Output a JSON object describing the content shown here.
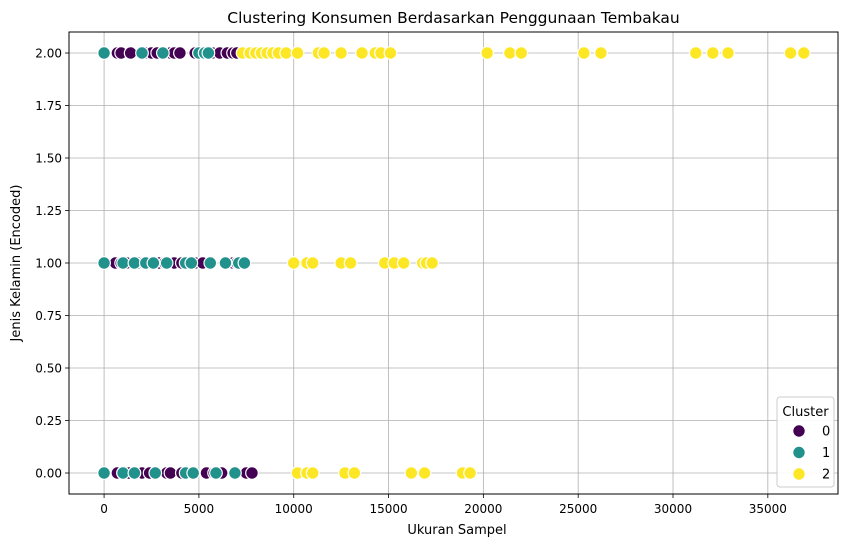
{
  "chart_data": {
    "type": "scatter",
    "title": "Clustering Konsumen Berdasarkan Penggunaan Tembakau",
    "xlabel": "Ukuran Sampel",
    "ylabel": "Jenis Kelamin (Encoded)",
    "xlim": [
      -1850,
      38700
    ],
    "ylim": [
      -0.1,
      2.1
    ],
    "xticks": [
      0,
      5000,
      10000,
      15000,
      20000,
      25000,
      30000,
      35000
    ],
    "yticks": [
      0.0,
      0.25,
      0.5,
      0.75,
      1.0,
      1.25,
      1.5,
      1.75,
      2.0
    ],
    "xtick_labels": [
      "0",
      "5000",
      "10000",
      "15000",
      "20000",
      "25000",
      "30000",
      "35000"
    ],
    "ytick_labels": [
      "0.00",
      "0.25",
      "0.50",
      "0.75",
      "1.00",
      "1.25",
      "1.50",
      "1.75",
      "2.00"
    ],
    "grid": true,
    "legend": {
      "title": "Cluster",
      "placement": "lower-right"
    },
    "series": [
      {
        "name": "0",
        "color": "#440154",
        "points": [
          [
            700,
            2
          ],
          [
            900,
            2
          ],
          [
            1400,
            2
          ],
          [
            2200,
            2
          ],
          [
            2500,
            2
          ],
          [
            2800,
            2
          ],
          [
            3500,
            2
          ],
          [
            3700,
            2
          ],
          [
            4000,
            2
          ],
          [
            4800,
            2
          ],
          [
            5700,
            2
          ],
          [
            6100,
            2
          ],
          [
            6500,
            2
          ],
          [
            6800,
            2
          ],
          [
            7000,
            2
          ],
          [
            600,
            1
          ],
          [
            900,
            1
          ],
          [
            1200,
            1
          ],
          [
            1800,
            1
          ],
          [
            2100,
            1
          ],
          [
            2900,
            1
          ],
          [
            3200,
            1
          ],
          [
            3700,
            1
          ],
          [
            4100,
            1
          ],
          [
            4800,
            1
          ],
          [
            5200,
            1
          ],
          [
            6800,
            1
          ],
          [
            7000,
            1
          ],
          [
            700,
            0
          ],
          [
            1000,
            0
          ],
          [
            1300,
            0
          ],
          [
            2000,
            0
          ],
          [
            2400,
            0
          ],
          [
            3300,
            0
          ],
          [
            3500,
            0
          ],
          [
            4100,
            0
          ],
          [
            5400,
            0
          ],
          [
            5800,
            0
          ],
          [
            6200,
            0
          ],
          [
            7500,
            0
          ],
          [
            7800,
            0
          ]
        ]
      },
      {
        "name": "1",
        "color": "#21918c",
        "points": [
          [
            0,
            2
          ],
          [
            2000,
            2
          ],
          [
            3100,
            2
          ],
          [
            5000,
            2
          ],
          [
            5300,
            2
          ],
          [
            5500,
            2
          ],
          [
            0,
            1
          ],
          [
            1000,
            1
          ],
          [
            1600,
            1
          ],
          [
            2200,
            1
          ],
          [
            2600,
            1
          ],
          [
            3300,
            1
          ],
          [
            4300,
            1
          ],
          [
            4600,
            1
          ],
          [
            5600,
            1
          ],
          [
            6400,
            1
          ],
          [
            7100,
            1
          ],
          [
            7400,
            1
          ],
          [
            0,
            0
          ],
          [
            1000,
            0
          ],
          [
            1600,
            0
          ],
          [
            2700,
            0
          ],
          [
            4300,
            0
          ],
          [
            4700,
            0
          ],
          [
            5900,
            0
          ],
          [
            6900,
            0
          ]
        ]
      },
      {
        "name": "2",
        "color": "#fde725",
        "points": [
          [
            7300,
            2
          ],
          [
            7700,
            2
          ],
          [
            8000,
            2
          ],
          [
            8300,
            2
          ],
          [
            8600,
            2
          ],
          [
            8900,
            2
          ],
          [
            9200,
            2
          ],
          [
            9600,
            2
          ],
          [
            10200,
            2
          ],
          [
            11300,
            2
          ],
          [
            11600,
            2
          ],
          [
            12500,
            2
          ],
          [
            13600,
            2
          ],
          [
            14300,
            2
          ],
          [
            14600,
            2
          ],
          [
            15100,
            2
          ],
          [
            20200,
            2
          ],
          [
            21400,
            2
          ],
          [
            22000,
            2
          ],
          [
            25300,
            2
          ],
          [
            26200,
            2
          ],
          [
            31200,
            2
          ],
          [
            32100,
            2
          ],
          [
            32900,
            2
          ],
          [
            36200,
            2
          ],
          [
            36900,
            2
          ],
          [
            10000,
            1
          ],
          [
            10700,
            1
          ],
          [
            11000,
            1
          ],
          [
            12500,
            1
          ],
          [
            13000,
            1
          ],
          [
            14800,
            1
          ],
          [
            15300,
            1
          ],
          [
            15800,
            1
          ],
          [
            16800,
            1
          ],
          [
            17000,
            1
          ],
          [
            17300,
            1
          ],
          [
            10200,
            0
          ],
          [
            10700,
            0
          ],
          [
            11000,
            0
          ],
          [
            12700,
            0
          ],
          [
            13200,
            0
          ],
          [
            16200,
            0
          ],
          [
            16900,
            0
          ],
          [
            18900,
            0
          ],
          [
            19300,
            0
          ]
        ]
      }
    ]
  }
}
